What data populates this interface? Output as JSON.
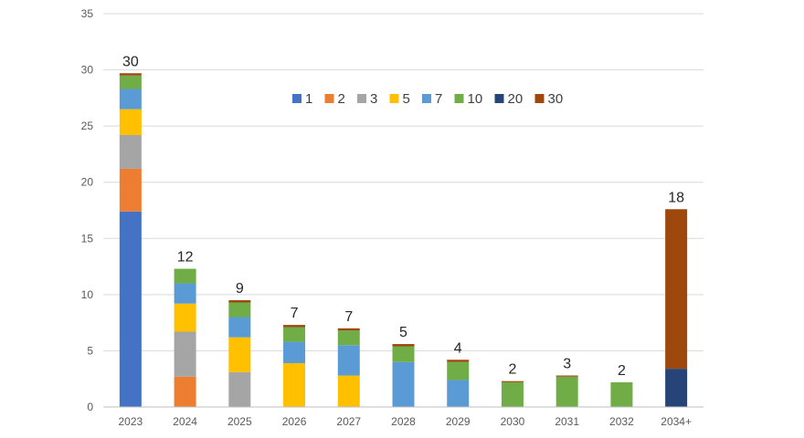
{
  "chart_data": {
    "type": "bar",
    "stacked": true,
    "categories": [
      "2023",
      "2024",
      "2025",
      "2026",
      "2027",
      "2028",
      "2029",
      "2030",
      "2031",
      "2032",
      "2034+"
    ],
    "series": [
      {
        "name": "1",
        "color": "#4472C4",
        "values": [
          17.4,
          0,
          0,
          0,
          0,
          0,
          0,
          0,
          0,
          0,
          0
        ]
      },
      {
        "name": "2",
        "color": "#ED7D31",
        "values": [
          3.8,
          2.7,
          0,
          0,
          0,
          0,
          0,
          0,
          0,
          0,
          0
        ]
      },
      {
        "name": "3",
        "color": "#A5A5A5",
        "values": [
          3.0,
          4.0,
          3.1,
          0,
          0,
          0,
          0,
          0,
          0,
          0,
          0
        ]
      },
      {
        "name": "5",
        "color": "#FFC000",
        "values": [
          2.3,
          2.5,
          3.1,
          3.9,
          2.8,
          0,
          0,
          0,
          0,
          0,
          0
        ]
      },
      {
        "name": "7",
        "color": "#5B9BD5",
        "values": [
          1.8,
          1.8,
          1.8,
          1.9,
          2.7,
          4.0,
          2.4,
          0,
          0,
          0,
          0
        ]
      },
      {
        "name": "10",
        "color": "#70AD47",
        "values": [
          1.2,
          1.3,
          1.3,
          1.3,
          1.3,
          1.4,
          1.6,
          2.2,
          2.7,
          2.2,
          0
        ]
      },
      {
        "name": "20",
        "color": "#264478",
        "values": [
          0,
          0,
          0,
          0,
          0,
          0,
          0,
          0,
          0,
          0,
          3.4
        ]
      },
      {
        "name": "30",
        "color": "#9E480E",
        "values": [
          0.2,
          0,
          0.2,
          0.2,
          0.2,
          0.2,
          0.2,
          0.1,
          0.1,
          0,
          14.2
        ]
      }
    ],
    "totals": [
      "30",
      "12",
      "9",
      "7",
      "7",
      "5",
      "4",
      "2",
      "3",
      "2",
      "18"
    ],
    "y_ticks": [
      "0",
      "5",
      "10",
      "15",
      "20",
      "25",
      "30",
      "35"
    ],
    "ylim": [
      0,
      35
    ],
    "grid": true,
    "legend_position": "top-center",
    "title": "",
    "xlabel": "",
    "ylabel": ""
  }
}
